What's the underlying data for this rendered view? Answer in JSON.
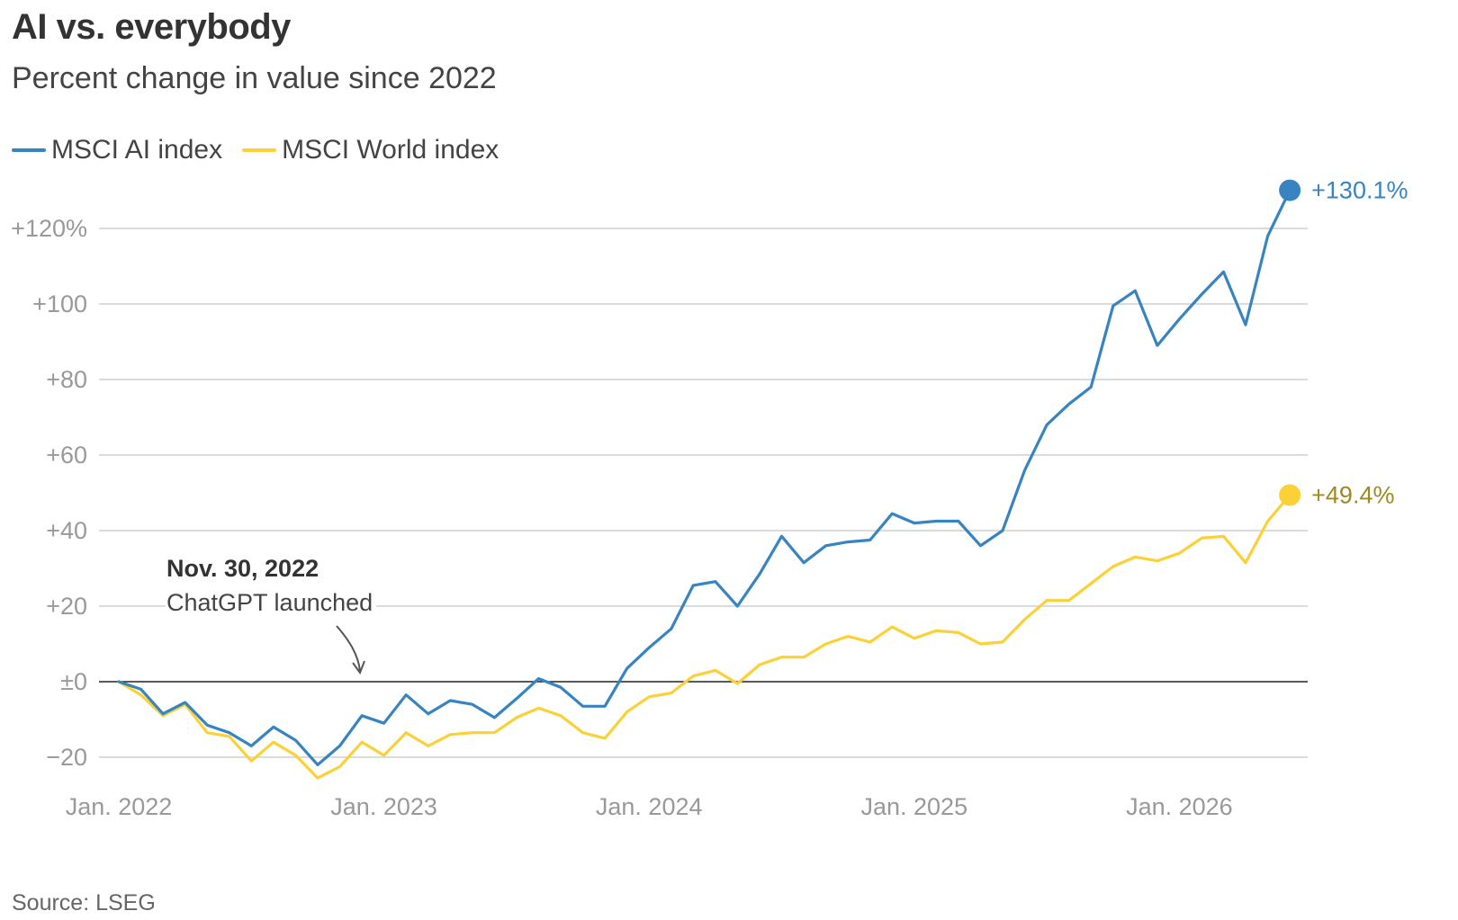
{
  "chart_data": {
    "type": "line",
    "title": "AI vs. everybody",
    "subtitle": "Percent change in value since 2022",
    "source": "Source: LSEG",
    "xlabel": "",
    "ylabel": "",
    "x_start": "2022-01",
    "x_ticks": [
      "Jan. 2022",
      "Jan. 2023",
      "Jan. 2024",
      "Jan. 2025",
      "Jan. 2026"
    ],
    "y_ticks": [
      "−20",
      "±0",
      "+20",
      "+40",
      "+60",
      "+80",
      "+100",
      "+120%"
    ],
    "ylim": [
      -27,
      130
    ],
    "grid": true,
    "legend_position": "top-left",
    "series": [
      {
        "name": "MSCI AI index",
        "color": "#3784c1",
        "end_label": "+130.1%",
        "end_label_color": "#3784c1",
        "values": [
          0,
          -2,
          -8.5,
          -5.5,
          -11.5,
          -13.5,
          -17,
          -12,
          -15.5,
          -22,
          -17,
          -9,
          -11,
          -3.5,
          -8.5,
          -5,
          -6,
          -9.5,
          -4.5,
          0.8,
          -1.5,
          -6.5,
          -6.5,
          3.5,
          9,
          14,
          25.5,
          26.5,
          20,
          28.5,
          38.5,
          31.5,
          36,
          37,
          37.5,
          44.5,
          42,
          42.5,
          42.5,
          36,
          40,
          56,
          68,
          73.5,
          78,
          99.5,
          103.5,
          89,
          96,
          102.5,
          108.5,
          94.5,
          118,
          130.1
        ]
      },
      {
        "name": "MSCI World index",
        "color": "#fbd137",
        "end_label": "+49.4%",
        "end_label_color": "#a08a20",
        "values": [
          0,
          -3.5,
          -9,
          -6,
          -13.5,
          -14.5,
          -21,
          -16,
          -19.5,
          -25.5,
          -22.5,
          -16,
          -19.5,
          -13.5,
          -17,
          -14,
          -13.5,
          -13.5,
          -9.5,
          -7,
          -9,
          -13.5,
          -15,
          -8,
          -4,
          -3,
          1.5,
          3,
          -0.5,
          4.5,
          6.5,
          6.5,
          10,
          12,
          10.5,
          14.5,
          11.5,
          13.5,
          13,
          10,
          10.5,
          16.5,
          21.5,
          21.5,
          26,
          30.5,
          33,
          32,
          34,
          38,
          38.5,
          31.5,
          42.5,
          49.4
        ]
      }
    ],
    "annotation": {
      "date": "Nov. 30, 2022",
      "text": "ChatGPT launched"
    }
  }
}
